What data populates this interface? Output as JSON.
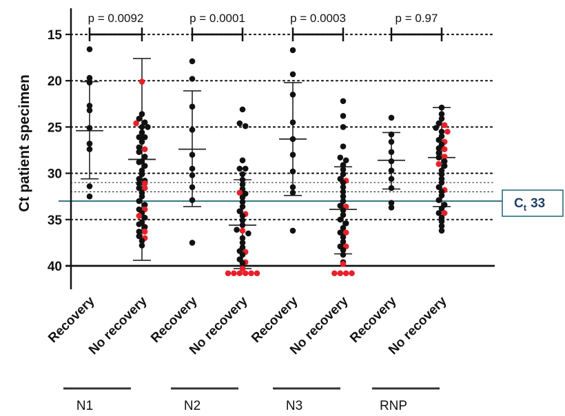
{
  "chart_data": {
    "type": "scatter",
    "ylabel": "Ct patient specimen",
    "y_axis": {
      "min": 12,
      "max": 41.5,
      "inverted": true,
      "ticks": [
        15,
        20,
        25,
        30,
        35,
        40
      ]
    },
    "gridlines_dotted": [
      15,
      20,
      25,
      30,
      31,
      32,
      35
    ],
    "limit_line": 40,
    "reference_line": {
      "value": 33,
      "label_main": "C",
      "label_sub": "t",
      "label_value": "33",
      "color": "#2a6b7e"
    },
    "colors": {
      "detected": "#111111",
      "not_detected": "#e8202a",
      "reference": "#2a6b7e"
    },
    "categories": [
      "Recovery",
      "No recovery",
      "Recovery",
      "No recovery",
      "Recovery",
      "No recovery",
      "Recovery",
      "No recovery"
    ],
    "groups": [
      {
        "name": "N1",
        "p_value": "p = 0.0092"
      },
      {
        "name": "N2",
        "p_value": "p = 0.0001"
      },
      {
        "name": "N3",
        "p_value": "p = 0.0003"
      },
      {
        "name": "RNP",
        "p_value": "p = 0.97"
      }
    ],
    "series": [
      {
        "group": "N1",
        "category": "Recovery",
        "mean": 25.4,
        "sd_low": 20.1,
        "sd_high": 30.6,
        "points_black": [
          16.6,
          19.7,
          20.2,
          22.7,
          23.2,
          25.1,
          26.8,
          27.4,
          31.4,
          32.5
        ],
        "points_red": []
      },
      {
        "group": "N1",
        "category": "No recovery",
        "mean": 28.5,
        "sd_low": 17.6,
        "sd_high": 39.4,
        "points_black": [
          23.6,
          24.1,
          24.5,
          25.0,
          25.0,
          25.6,
          26.1,
          26.1,
          26.6,
          27.2,
          27.7,
          28.2,
          28.7,
          28.8,
          29.2,
          29.7,
          30.1,
          30.6,
          30.8,
          31.1,
          31.6,
          32.1,
          32.5,
          33.0,
          33.4,
          33.9,
          34.3,
          34.8,
          35.3,
          35.5,
          35.8,
          36.3,
          36.8,
          37.3,
          37.8
        ],
        "points_red": [
          20.1,
          24.6,
          27.4,
          31.1,
          31.6,
          33.9,
          34.6,
          36.3,
          37.0
        ]
      },
      {
        "group": "N2",
        "category": "Recovery",
        "mean": 27.4,
        "sd_low": 21.1,
        "sd_high": 33.6,
        "points_black": [
          17.9,
          19.8,
          22.8,
          25.3,
          28.0,
          29.5,
          30.2,
          31.5,
          32.9,
          37.5
        ],
        "points_red": []
      },
      {
        "group": "N2",
        "category": "No recovery",
        "mean": 35.6,
        "sd_low": 30.7,
        "sd_high": 40.3,
        "points_black": [
          23.1,
          24.6,
          24.9,
          28.6,
          29.5,
          29.5,
          30.1,
          30.7,
          31.2,
          31.7,
          32.2,
          32.6,
          33.1,
          33.6,
          34.1,
          34.6,
          35.1,
          35.6,
          36.1,
          36.5,
          37.0,
          37.5,
          38.0,
          38.4,
          38.8,
          39.3,
          39.7
        ],
        "points_red": [
          32.1,
          34.4,
          36.2,
          38.5,
          39.6,
          40.3,
          40.8,
          40.8,
          40.8,
          40.8,
          40.8,
          40.8
        ]
      },
      {
        "group": "N3",
        "category": "Recovery",
        "mean": 26.3,
        "sd_low": 20.2,
        "sd_high": 32.4,
        "points_black": [
          16.7,
          19.3,
          21.5,
          24.5,
          26.3,
          28.0,
          29.8,
          31.5,
          32.1,
          36.2
        ],
        "points_red": []
      },
      {
        "group": "N3",
        "category": "No recovery",
        "mean": 33.9,
        "sd_low": 29.3,
        "sd_high": 38.7,
        "points_black": [
          22.2,
          23.8,
          25.0,
          27.1,
          28.3,
          28.6,
          29.1,
          29.6,
          30.1,
          30.6,
          31.0,
          31.5,
          32.0,
          32.5,
          33.0,
          33.5,
          34.0,
          34.5,
          35.0,
          35.4,
          35.9,
          36.4,
          36.9,
          37.4,
          37.9,
          38.3,
          38.8,
          39.6
        ],
        "points_red": [
          30.8,
          33.6,
          36.4,
          37.9,
          39.8,
          40.8,
          40.8,
          40.8,
          40.8
        ]
      },
      {
        "group": "RNP",
        "category": "Recovery",
        "mean": 28.6,
        "sd_low": 25.6,
        "sd_high": 31.7,
        "points_black": [
          24.0,
          25.8,
          26.6,
          27.7,
          28.7,
          29.7,
          30.6,
          31.6,
          33.2,
          33.7
        ],
        "points_red": []
      },
      {
        "group": "RNP",
        "category": "No recovery",
        "mean": 28.3,
        "sd_low": 22.9,
        "sd_high": 33.6,
        "points_black": [
          22.9,
          23.6,
          24.1,
          24.6,
          25.1,
          25.5,
          26.0,
          26.4,
          26.9,
          27.3,
          27.8,
          28.3,
          28.7,
          29.2,
          29.7,
          30.1,
          30.6,
          31.0,
          31.5,
          32.0,
          32.4,
          32.9,
          33.4,
          33.8,
          34.3,
          34.8,
          35.2,
          35.7,
          36.2
        ],
        "points_red": [
          24.8,
          25.5,
          26.6,
          27.4,
          28.2,
          29.0,
          31.8,
          34.3
        ]
      }
    ]
  }
}
